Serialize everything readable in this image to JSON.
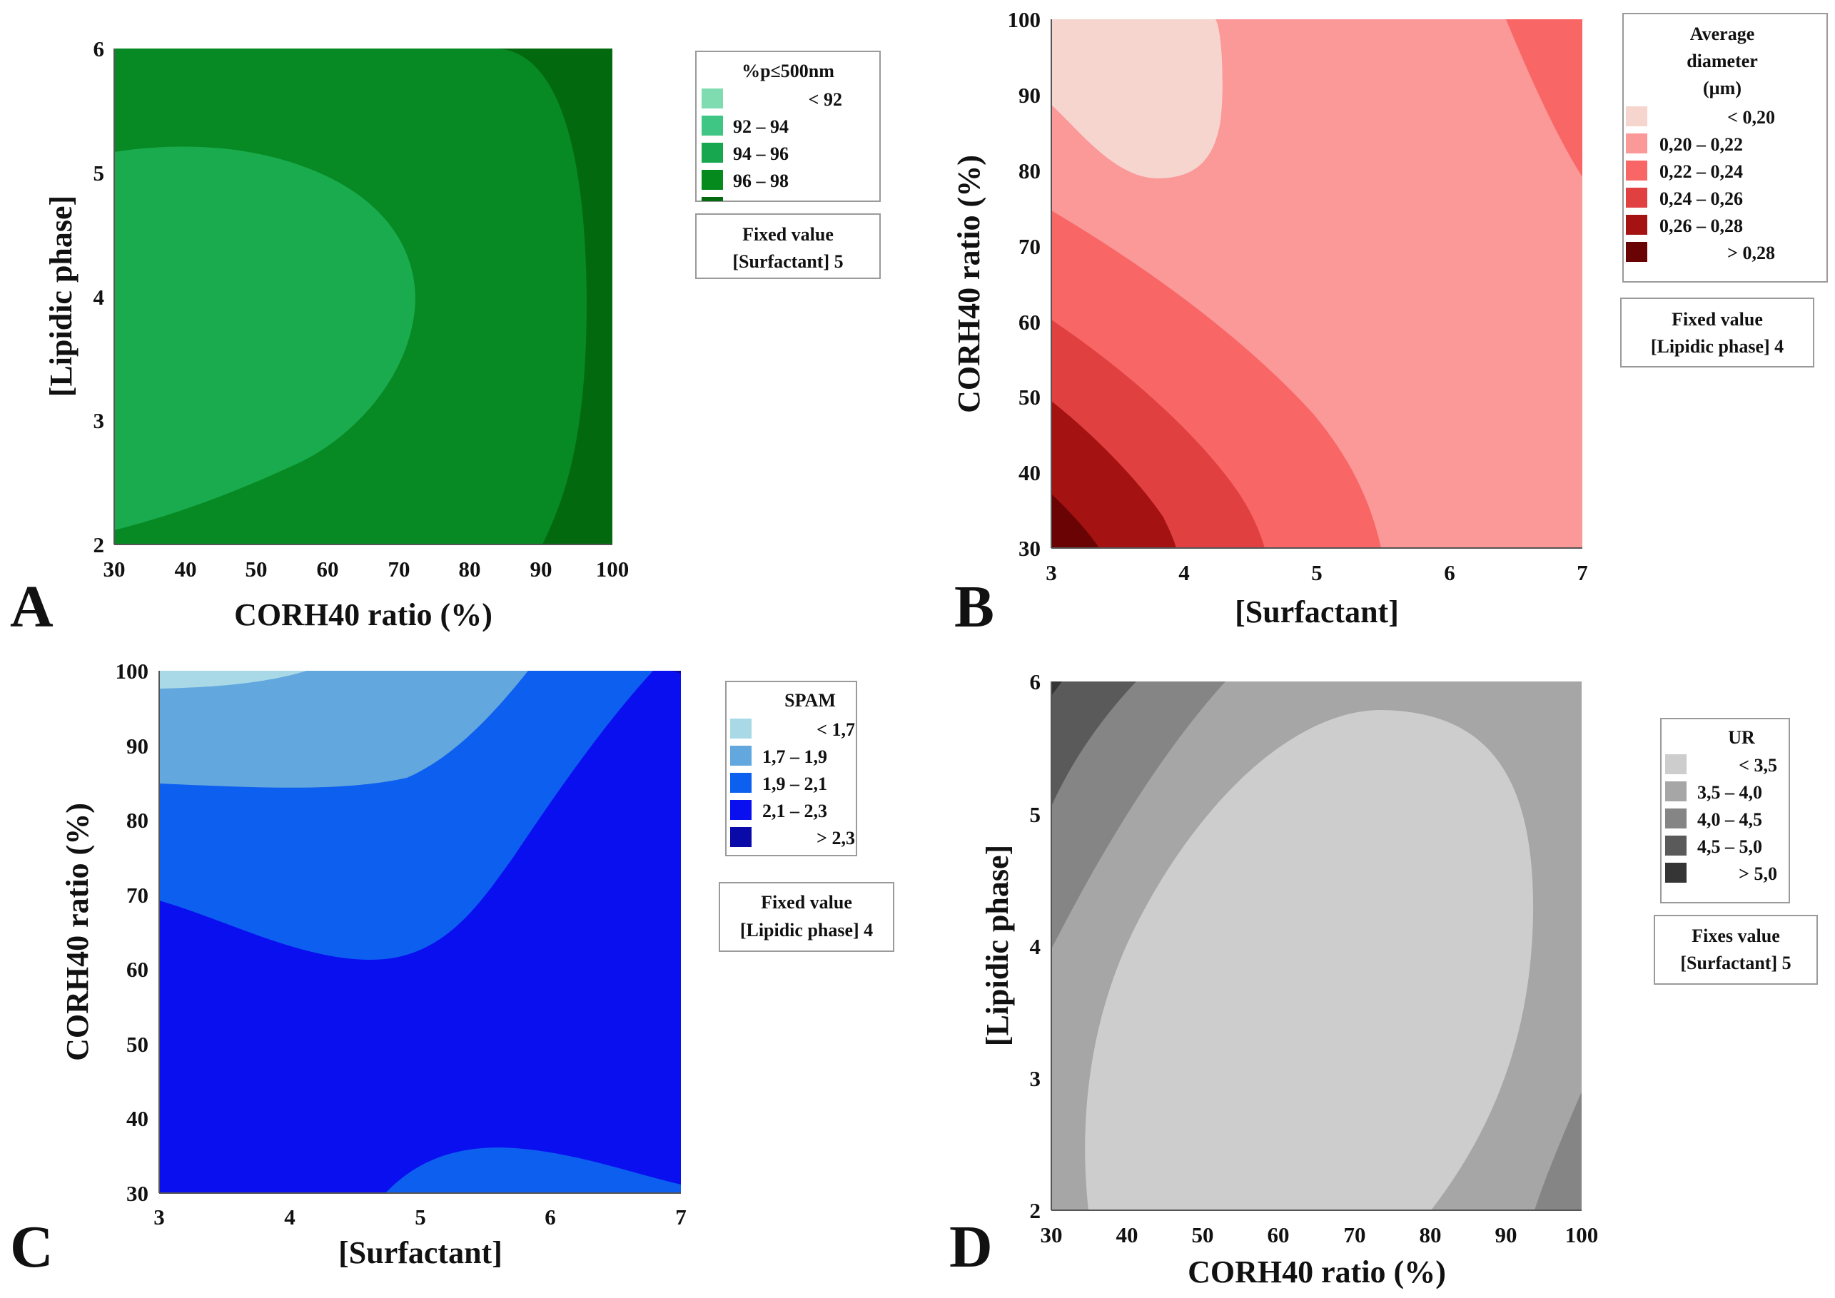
{
  "chart_data": [
    {
      "panel": "A",
      "type": "contour",
      "xlabel": "CORH40 ratio (%)",
      "ylabel": "[Lipidic phase]",
      "x_ticks": [
        "30",
        "40",
        "50",
        "60",
        "70",
        "80",
        "90",
        "100"
      ],
      "y_ticks": [
        "2",
        "3",
        "4",
        "5",
        "6"
      ],
      "xlim": [
        30,
        100
      ],
      "ylim": [
        2,
        6
      ],
      "legend": {
        "title": "%p≤500nm",
        "entries": [
          {
            "label": "<   92",
            "color": "#7fdcb0"
          },
          {
            "label": "92      –  94",
            "color": "#3fc584"
          },
          {
            "label": "94      –  96",
            "color": "#17a84f"
          },
          {
            "label": "96      –  98",
            "color": "#058a1e"
          }
        ]
      },
      "fixed_value": {
        "title": "Fixed value",
        "text": "[Surfactant]  5"
      },
      "regions": [
        {
          "range": "94-96",
          "color": "#1aab4e",
          "description": "left lobe, max near CORH40 30-50%, lipidic 3-5"
        },
        {
          "range": "96-98",
          "color": "#078a23",
          "description": "middle band"
        },
        {
          "range": "96-98 (darker)",
          "color": "#03690f",
          "description": "right region, CORH40 > 90%"
        }
      ]
    },
    {
      "panel": "B",
      "type": "contour",
      "xlabel": "[Surfactant]",
      "ylabel": "CORH40 ratio (%)",
      "x_ticks": [
        "3",
        "4",
        "5",
        "6",
        "7"
      ],
      "y_ticks": [
        "30",
        "40",
        "50",
        "60",
        "70",
        "80",
        "90",
        "100"
      ],
      "xlim": [
        3,
        7
      ],
      "ylim": [
        30,
        100
      ],
      "legend": {
        "title_lines": [
          "Average",
          "diameter",
          "(µm)"
        ],
        "entries": [
          {
            "label": "<  0,20",
            "color": "#f6d5cf"
          },
          {
            "label": "0,20  –  0,22",
            "color": "#fb9898"
          },
          {
            "label": "0,22  –  0,24",
            "color": "#f96666"
          },
          {
            "label": "0,24  –  0,26",
            "color": "#e04040"
          },
          {
            "label": "0,26  –  0,28",
            "color": "#a41212"
          },
          {
            "label": ">  0,28",
            "color": "#6a0404"
          }
        ]
      },
      "fixed_value": {
        "title": "Fixed value",
        "text": "[Lipidic phase]  4"
      }
    },
    {
      "panel": "C",
      "type": "contour",
      "xlabel": "[Surfactant]",
      "ylabel": "CORH40 ratio (%)",
      "x_ticks": [
        "3",
        "4",
        "5",
        "6",
        "7"
      ],
      "y_ticks": [
        "30",
        "40",
        "50",
        "60",
        "70",
        "80",
        "90",
        "100"
      ],
      "xlim": [
        3,
        7
      ],
      "ylim": [
        30,
        100
      ],
      "legend": {
        "title": "SPAM",
        "entries": [
          {
            "label": "<  1,7",
            "color": "#a9d9e6"
          },
          {
            "label": "1,7  –  1,9",
            "color": "#62a7dd"
          },
          {
            "label": "1,9  –  2,1",
            "color": "#0d5ff0"
          },
          {
            "label": "2,1  –  2,3",
            "color": "#0a0ff0"
          },
          {
            "label": ">  2,3",
            "color": "#0a0aa8"
          }
        ]
      },
      "fixed_value": {
        "title": "Fixed value",
        "text": "[Lipidic phase]  4"
      }
    },
    {
      "panel": "D",
      "type": "contour",
      "xlabel": "CORH40 ratio (%)",
      "ylabel": "[Lipidic phase]",
      "x_ticks": [
        "30",
        "40",
        "50",
        "60",
        "70",
        "80",
        "90",
        "100"
      ],
      "y_ticks": [
        "2",
        "3",
        "4",
        "5",
        "6"
      ],
      "xlim": [
        30,
        100
      ],
      "ylim": [
        2,
        6
      ],
      "legend": {
        "title": "UR",
        "entries": [
          {
            "label": "<  3,5",
            "color": "#cdcdcd"
          },
          {
            "label": "3,5  –  4,0",
            "color": "#a6a6a6"
          },
          {
            "label": "4,0  –  4,5",
            "color": "#858585"
          },
          {
            "label": "4,5  –  5,0",
            "color": "#5a5a5a"
          },
          {
            "label": ">  5,0",
            "color": "#353535"
          }
        ]
      },
      "fixed_value": {
        "title": "Fixes value",
        "text": "[Surfactant]  5"
      }
    }
  ]
}
